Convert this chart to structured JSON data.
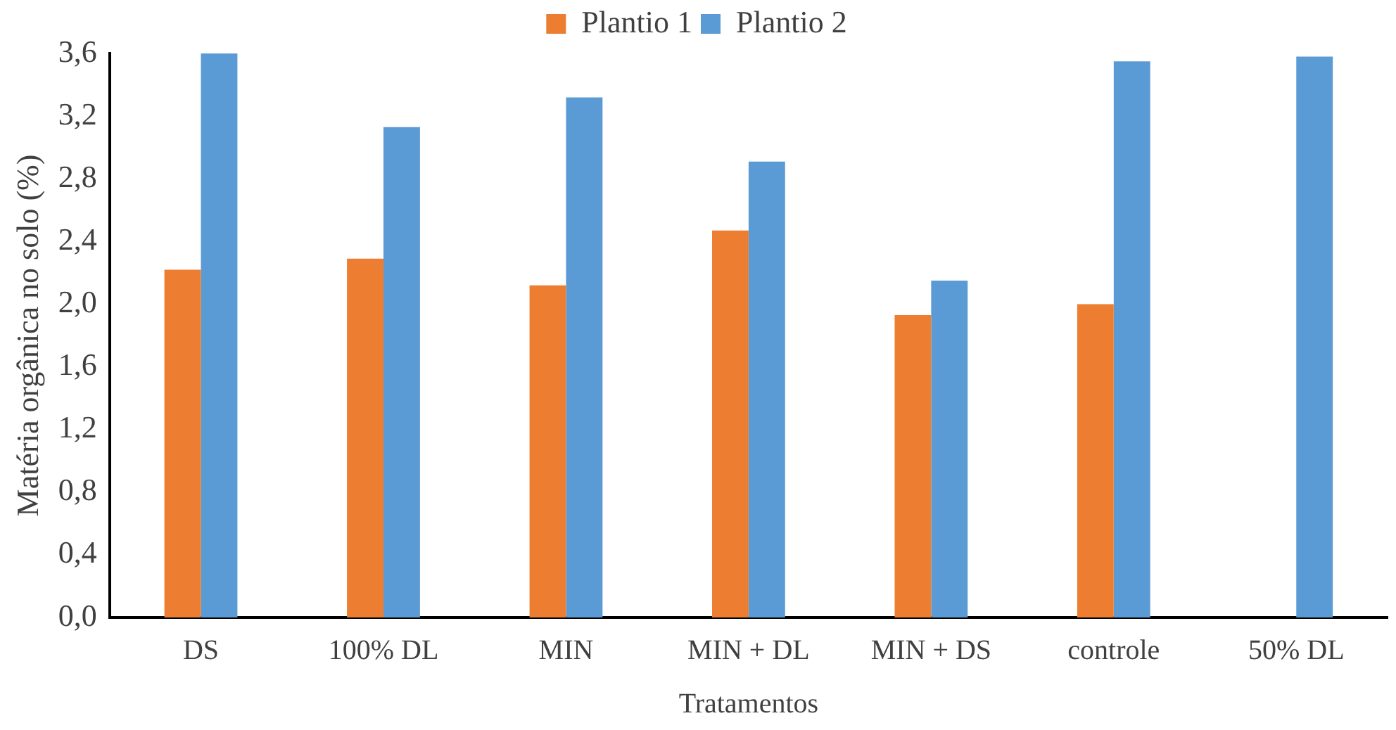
{
  "chart_data": {
    "type": "bar",
    "xlabel": "Tratamentos",
    "ylabel": "Matéria orgânica no solo (%)",
    "categories": [
      "DS",
      "100% DL",
      "MIN",
      "MIN + DL",
      "MIN + DS",
      "controle",
      "50% DL"
    ],
    "series": [
      {
        "name": "Plantio 1",
        "color": "#ed7d31",
        "values": [
          2.22,
          2.29,
          2.12,
          2.47,
          1.93,
          2.0,
          null
        ]
      },
      {
        "name": "Plantio 2",
        "color": "#5b9bd5",
        "values": [
          3.6,
          3.13,
          3.32,
          2.91,
          2.15,
          3.55,
          3.58
        ]
      }
    ],
    "ylim": [
      0,
      3.6
    ],
    "yticks": [
      {
        "value": 0,
        "label": "0,0"
      },
      {
        "value": 0.4,
        "label": "0,4"
      },
      {
        "value": 0.8,
        "label": "0,8"
      },
      {
        "value": 1.2,
        "label": "1,2"
      },
      {
        "value": 1.6,
        "label": "1,6"
      },
      {
        "value": 2.0,
        "label": "2,0"
      },
      {
        "value": 2.4,
        "label": "2,4"
      },
      {
        "value": 2.8,
        "label": "2,8"
      },
      {
        "value": 3.2,
        "label": "3,2"
      },
      {
        "value": 3.6,
        "label": "3,6"
      }
    ],
    "grid": false,
    "legend": "top"
  }
}
